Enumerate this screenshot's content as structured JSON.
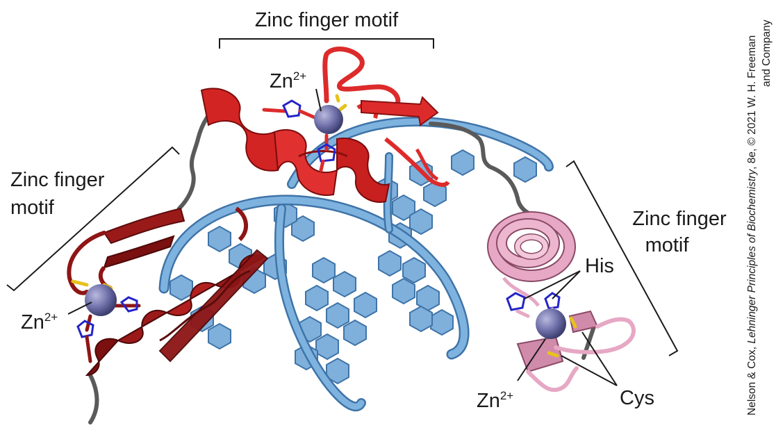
{
  "labels": {
    "motif_top": "Zinc finger motif",
    "motif_left_line1": "Zinc finger",
    "motif_left_line2": "motif",
    "motif_right_line1": "Zinc finger",
    "motif_right_line2": "motif",
    "zn_base": "Zn",
    "zn_charge": "2+",
    "his": "His",
    "cys": "Cys"
  },
  "credit": {
    "line1_prefix": "Nelson & Cox, ",
    "line1_italic": "Lehninger Principles of Biochemistry",
    "line1_suffix": ", 8e, © 2021 W. H. Freeman",
    "line2": "and Company"
  },
  "colors": {
    "dna": "#6ea6d6",
    "dna_dark": "#3f74a8",
    "finger_left": "#8e1515",
    "finger_top": "#dd2b2b",
    "finger_right": "#e6a8c4",
    "linker": "#5a5a5a",
    "zinc": "#6e6fa8",
    "sulfur": "#e6c21e",
    "nitrogen": "#2424c8"
  }
}
